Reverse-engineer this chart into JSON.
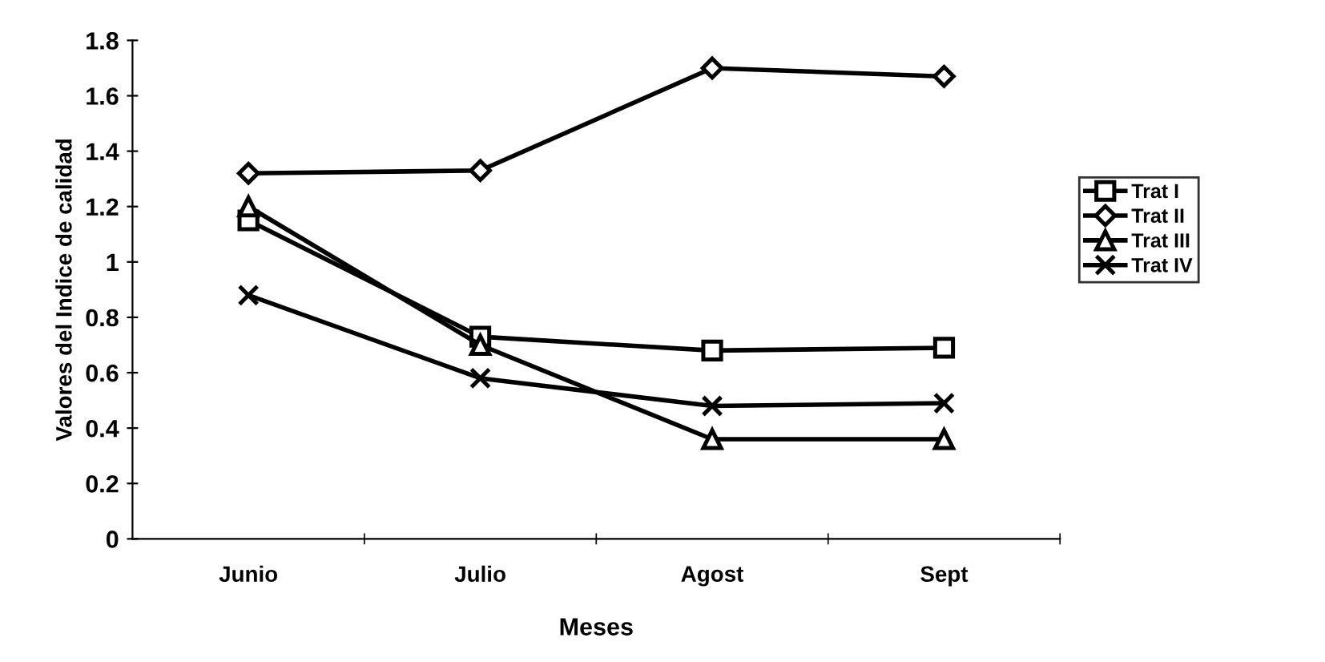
{
  "chart_data": {
    "type": "line",
    "xlabel": "Meses",
    "ylabel": "Valores del Indice de calidad",
    "categories": [
      "Junio",
      "Julio",
      "Agost",
      "Sept"
    ],
    "series": [
      {
        "name": "Trat I",
        "color": "#000000",
        "marker": "square",
        "values": [
          1.15,
          0.73,
          0.68,
          0.69
        ]
      },
      {
        "name": "Trat II",
        "color": "#000000",
        "marker": "diamond",
        "values": [
          1.32,
          1.33,
          1.7,
          1.67
        ]
      },
      {
        "name": "Trat III",
        "color": "#000000",
        "marker": "triangle",
        "values": [
          1.2,
          0.7,
          0.36,
          0.36
        ]
      },
      {
        "name": "Trat IV",
        "color": "#000000",
        "marker": "cross",
        "values": [
          0.88,
          0.58,
          0.48,
          0.49
        ]
      }
    ],
    "ylim": [
      0,
      1.8
    ],
    "yticks": [
      0,
      0.2,
      0.4,
      0.6,
      0.8,
      1,
      1.2,
      1.4,
      1.6,
      1.8
    ],
    "grid": false,
    "legend": "right",
    "line_style": "solid"
  }
}
